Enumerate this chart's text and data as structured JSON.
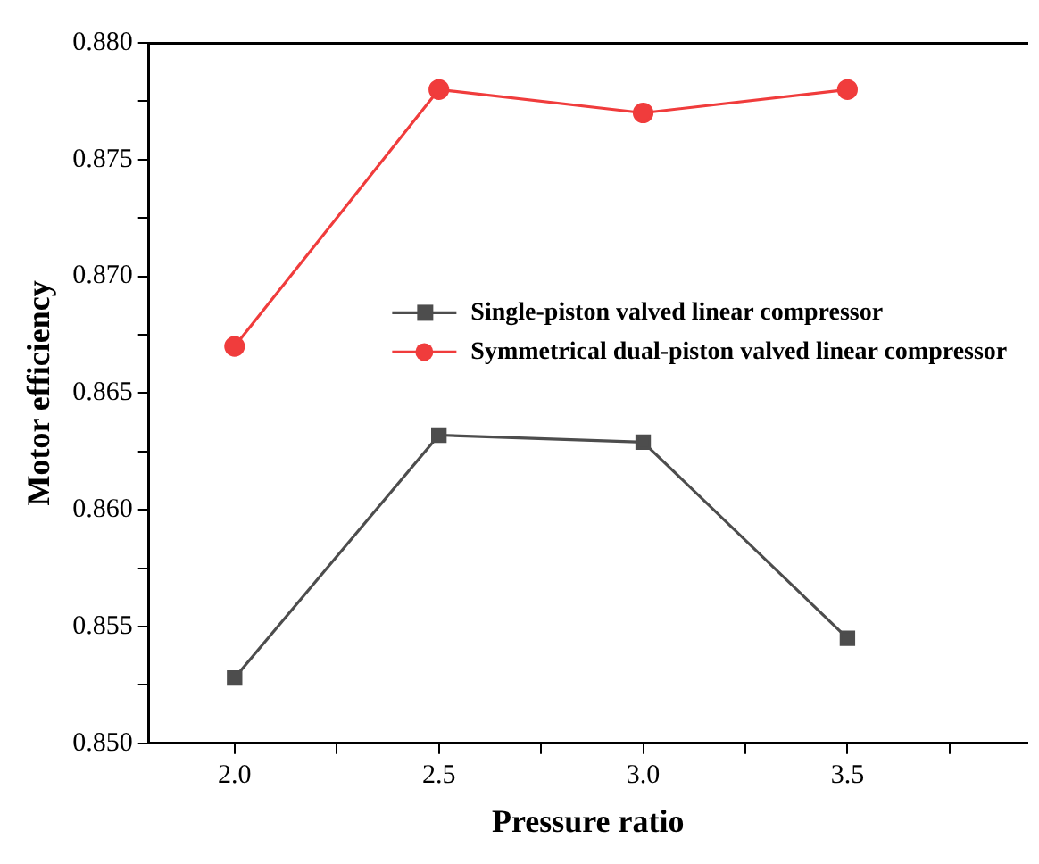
{
  "chart_data": {
    "type": "line",
    "xlabel": "Pressure ratio",
    "ylabel": "Motor efficiency",
    "x": [
      2.0,
      2.5,
      3.0,
      3.5
    ],
    "series": [
      {
        "name": "Single-piston valved linear compressor",
        "color": "#4d4d4d",
        "values": [
          0.8528,
          0.8632,
          0.8629,
          0.8545
        ],
        "marker": "square"
      },
      {
        "name": "Symmetrical dual-piston valved linear compressor",
        "color": "#f03c3c",
        "values": [
          0.867,
          0.878,
          0.877,
          0.878
        ],
        "marker": "circle"
      }
    ],
    "xlim": [
      1.79,
      3.94
    ],
    "xticks": [
      {
        "value": 2.0,
        "label": "2.0"
      },
      {
        "value": 2.25,
        "label": null
      },
      {
        "value": 2.5,
        "label": "2.5"
      },
      {
        "value": 2.75,
        "label": null
      },
      {
        "value": 3.0,
        "label": "3.0"
      },
      {
        "value": 3.25,
        "label": null
      },
      {
        "value": 3.5,
        "label": "3.5"
      },
      {
        "value": 3.75,
        "label": null
      }
    ],
    "ylim": [
      0.85,
      0.88
    ],
    "yticks": [
      {
        "value": 0.85,
        "label": "0.850"
      },
      {
        "value": 0.8525,
        "label": null
      },
      {
        "value": 0.855,
        "label": "0.855"
      },
      {
        "value": 0.8575,
        "label": null
      },
      {
        "value": 0.86,
        "label": "0.860"
      },
      {
        "value": 0.8625,
        "label": null
      },
      {
        "value": 0.865,
        "label": "0.865"
      },
      {
        "value": 0.8675,
        "label": null
      },
      {
        "value": 0.87,
        "label": "0.870"
      },
      {
        "value": 0.8725,
        "label": null
      },
      {
        "value": 0.875,
        "label": "0.875"
      },
      {
        "value": 0.8775,
        "label": null
      },
      {
        "value": 0.88,
        "label": "0.880"
      }
    ],
    "grid": false,
    "legend": "right",
    "line_style": "solid"
  }
}
